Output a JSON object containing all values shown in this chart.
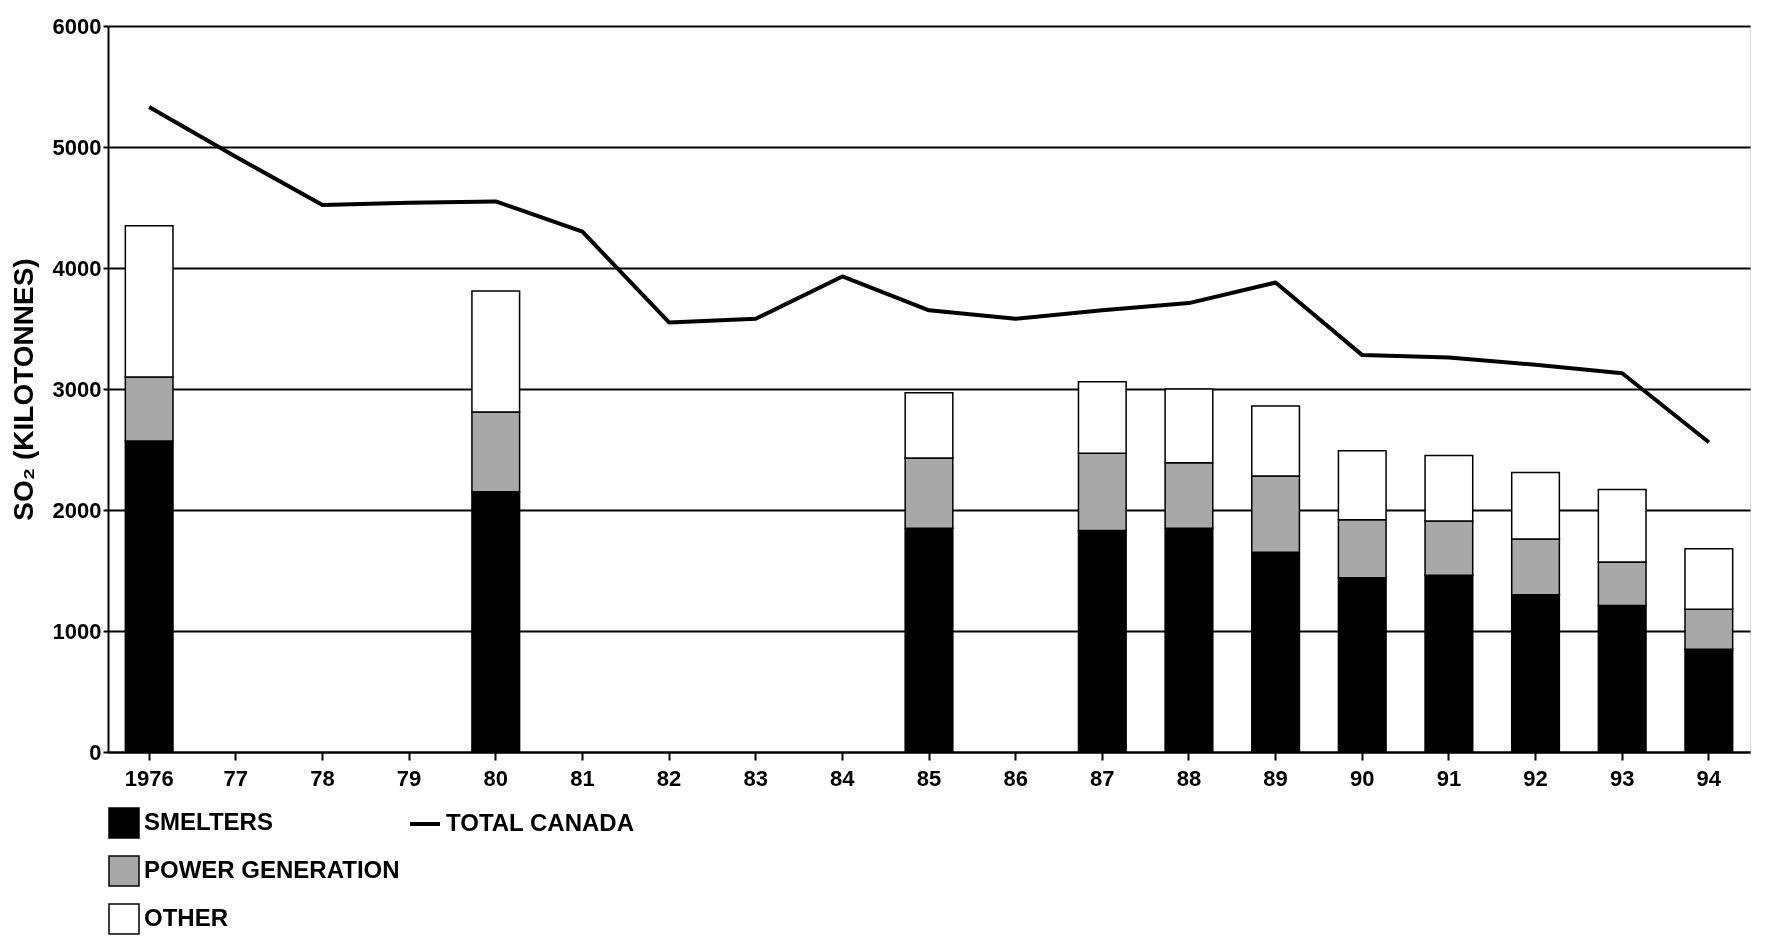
{
  "chart_data": {
    "type": "bar",
    "stacked": true,
    "ylabel": "SO₂ (KILOTONNES)",
    "categories": [
      "1976",
      "77",
      "78",
      "79",
      "80",
      "81",
      "82",
      "83",
      "84",
      "85",
      "86",
      "87",
      "88",
      "89",
      "90",
      "91",
      "92",
      "93",
      "94"
    ],
    "series": [
      {
        "name": "SMELTERS",
        "color": "#000000",
        "values": [
          2570,
          null,
          null,
          null,
          2150,
          null,
          null,
          null,
          null,
          1850,
          null,
          1830,
          1850,
          1650,
          1440,
          1460,
          1300,
          1210,
          850
        ]
      },
      {
        "name": "POWER GENERATION",
        "color": "#a8a8a8",
        "values": [
          530,
          null,
          null,
          null,
          660,
          null,
          null,
          null,
          null,
          580,
          null,
          640,
          540,
          630,
          480,
          450,
          460,
          360,
          330
        ]
      },
      {
        "name": "OTHER",
        "color": "#ffffff",
        "values": [
          1250,
          null,
          null,
          null,
          1000,
          null,
          null,
          null,
          null,
          540,
          null,
          590,
          610,
          580,
          570,
          540,
          550,
          600,
          500
        ]
      },
      {
        "name": "TOTAL CANADA",
        "type": "line",
        "color": "#000000",
        "values": [
          5330,
          4920,
          4520,
          4540,
          4550,
          4300,
          3550,
          3580,
          3930,
          3650,
          3580,
          3650,
          3710,
          3880,
          3280,
          3260,
          3200,
          3130,
          2560
        ]
      }
    ],
    "ylim": [
      0,
      6000
    ],
    "yticks": [
      0,
      1000,
      2000,
      3000,
      4000,
      5000,
      6000
    ],
    "grid": "y",
    "legend": "bottom"
  }
}
